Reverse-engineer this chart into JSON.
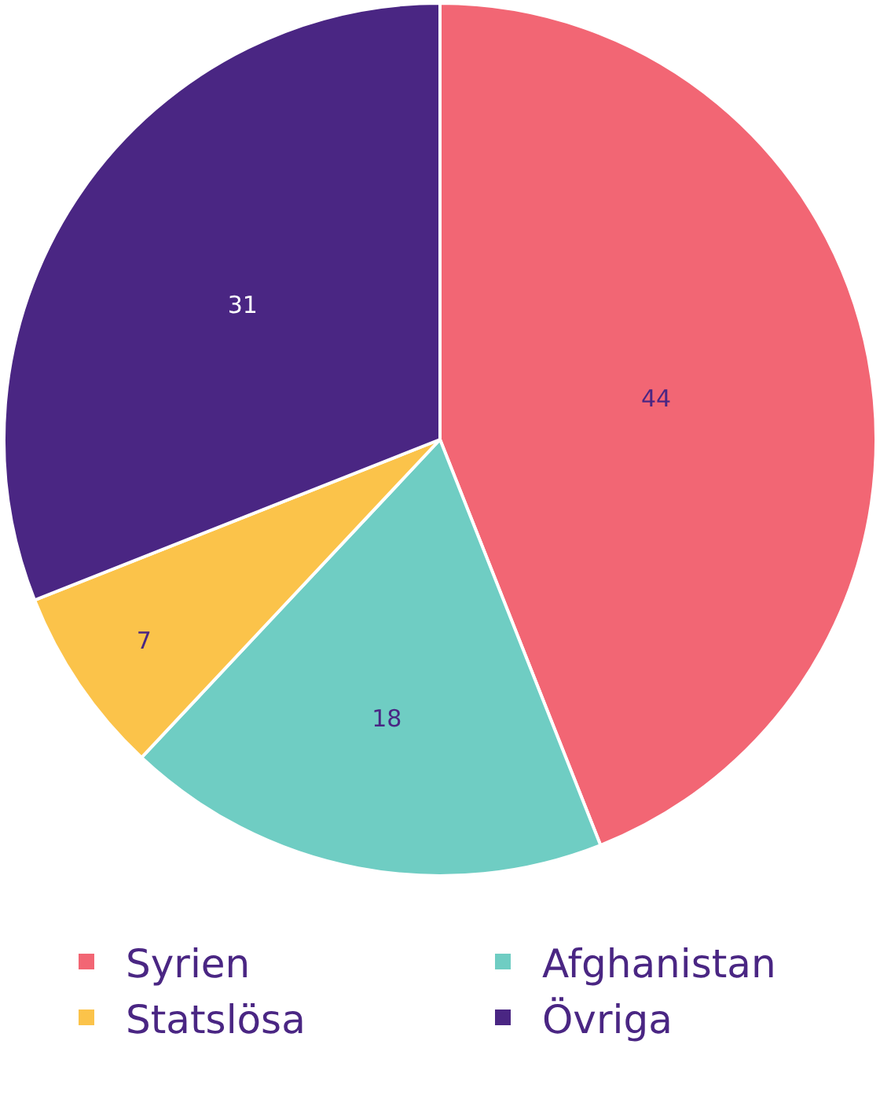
{
  "chart_data": {
    "type": "pie",
    "categories": [
      "Syrien",
      "Afghanistan",
      "Statslösa",
      "Övriga"
    ],
    "values": [
      44,
      18,
      7,
      31
    ],
    "colors": [
      "#f26674",
      "#6fcdc3",
      "#fbc34a",
      "#4a2683"
    ],
    "data_labels": true,
    "legend": "bottom"
  }
}
